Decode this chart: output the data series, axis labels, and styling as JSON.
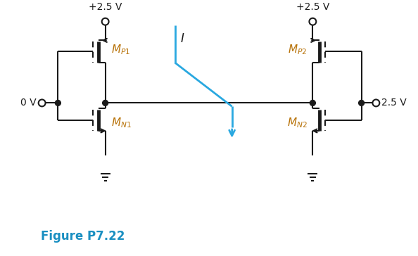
{
  "bg_color": "#ffffff",
  "line_color": "#1a1a1a",
  "cyan_color": "#29a8e0",
  "figure_label": "Figure P7.22",
  "figure_label_color": "#1a8fc1",
  "vdd_label": "+2.5 V",
  "label_0v": "0 V",
  "label_25v": "2.5 V",
  "label_I": "I",
  "figsize": [
    5.94,
    3.64
  ],
  "dpi": 100
}
